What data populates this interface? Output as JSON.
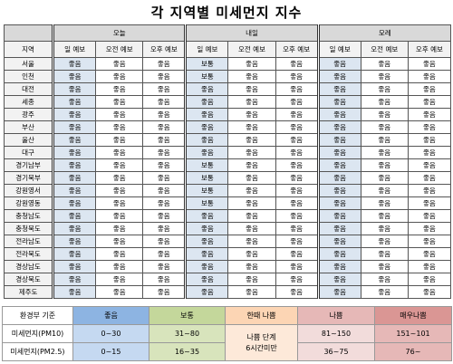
{
  "header": {
    "title": "각 지역별 미세먼지 지수"
  },
  "table": {
    "groups": [
      "오늘",
      "내일",
      "모레"
    ],
    "subheaders": [
      "지역",
      "일 예보",
      "오전 예보",
      "오후 예보",
      "일 예보",
      "오전 예보",
      "오후 예보",
      "일 예보",
      "오전 예보",
      "오후 예보"
    ],
    "rows": [
      [
        "서울",
        "좋음",
        "좋음",
        "좋음",
        "보통",
        "좋음",
        "좋음",
        "좋음",
        "좋음",
        "좋음"
      ],
      [
        "인천",
        "좋음",
        "좋음",
        "좋음",
        "보통",
        "좋음",
        "좋음",
        "좋음",
        "좋음",
        "좋음"
      ],
      [
        "대전",
        "좋음",
        "좋음",
        "좋음",
        "좋음",
        "좋음",
        "좋음",
        "좋음",
        "좋음",
        "좋음"
      ],
      [
        "세종",
        "좋음",
        "좋음",
        "좋음",
        "좋음",
        "좋음",
        "좋음",
        "좋음",
        "좋음",
        "좋음"
      ],
      [
        "광주",
        "좋음",
        "좋음",
        "좋음",
        "좋음",
        "좋음",
        "좋음",
        "좋음",
        "좋음",
        "좋음"
      ],
      [
        "부산",
        "좋음",
        "좋음",
        "좋음",
        "좋음",
        "좋음",
        "좋음",
        "좋음",
        "좋음",
        "좋음"
      ],
      [
        "울산",
        "좋음",
        "좋음",
        "좋음",
        "좋음",
        "좋음",
        "좋음",
        "좋음",
        "좋음",
        "좋음"
      ],
      [
        "대구",
        "좋음",
        "좋음",
        "좋음",
        "좋음",
        "좋음",
        "좋음",
        "좋음",
        "좋음",
        "좋음"
      ],
      [
        "경기남부",
        "좋음",
        "좋음",
        "좋음",
        "보통",
        "좋음",
        "좋음",
        "좋음",
        "좋음",
        "좋음"
      ],
      [
        "경기북부",
        "좋음",
        "좋음",
        "좋음",
        "보통",
        "좋음",
        "좋음",
        "좋음",
        "좋음",
        "좋음"
      ],
      [
        "강원영서",
        "좋음",
        "좋음",
        "좋음",
        "보통",
        "좋음",
        "좋음",
        "좋음",
        "좋음",
        "좋음"
      ],
      [
        "강원영동",
        "좋음",
        "좋음",
        "좋음",
        "보통",
        "좋음",
        "좋음",
        "좋음",
        "좋음",
        "좋음"
      ],
      [
        "충청남도",
        "좋음",
        "좋음",
        "좋음",
        "좋음",
        "좋음",
        "좋음",
        "좋음",
        "좋음",
        "좋음"
      ],
      [
        "충청북도",
        "좋음",
        "좋음",
        "좋음",
        "좋음",
        "좋음",
        "좋음",
        "좋음",
        "좋음",
        "좋음"
      ],
      [
        "전라남도",
        "좋음",
        "좋음",
        "좋음",
        "좋음",
        "좋음",
        "좋음",
        "좋음",
        "좋음",
        "좋음"
      ],
      [
        "전라북도",
        "좋음",
        "좋음",
        "좋음",
        "좋음",
        "좋음",
        "좋음",
        "좋음",
        "좋음",
        "좋음"
      ],
      [
        "경상남도",
        "좋음",
        "좋음",
        "좋음",
        "좋음",
        "좋음",
        "좋음",
        "좋음",
        "좋음",
        "좋음"
      ],
      [
        "경상북도",
        "좋음",
        "좋음",
        "좋음",
        "좋음",
        "좋음",
        "좋음",
        "좋음",
        "좋음",
        "좋음"
      ],
      [
        "제주도",
        "좋음",
        "좋음",
        "좋음",
        "좋음",
        "좋음",
        "좋음",
        "좋음",
        "좋음",
        "좋음"
      ]
    ]
  },
  "legend": {
    "header": [
      "환경부 기준",
      "좋음",
      "보통",
      "한때 나쁨",
      "나쁨",
      "매우나쁨"
    ],
    "note": [
      "나쁨 단계",
      "6시간미만"
    ],
    "rows": [
      [
        "미세먼지(PM10)",
        "0~30",
        "31~80",
        "81~150",
        "151~101"
      ],
      [
        "미세먼지(PM2.5)",
        "0~15",
        "16~35",
        "36~75",
        "76~"
      ]
    ]
  }
}
